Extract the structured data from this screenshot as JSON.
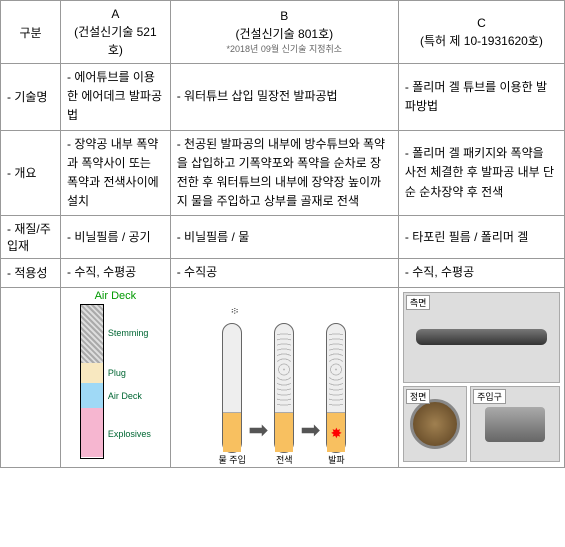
{
  "header": {
    "category_label": "구분",
    "col_a_title": "A\n(건설신기술 521호)",
    "col_b_title": "B\n(건설신기술 801호)",
    "col_b_note": "*2018년 09월 신기술 지정취소",
    "col_c_title": "C\n(특허 제 10-1931620호)"
  },
  "rows": {
    "tech_name": {
      "label": "- 기술명",
      "a": "- 에어튜브를 이용한 에어데크 발파공법",
      "b": "- 워터튜브 삽입 밀장전 발파공법",
      "c": "- 폴리머 겔 튜브를 이용한 발파방법"
    },
    "overview": {
      "label": "- 개요",
      "a": "- 장약공 내부 폭약과 폭약사이 또는 폭약과 전색사이에 설치",
      "b": "- 천공된 발파공의 내부에 방수튜브와 폭약을 삽입하고 기폭약포와 폭약을 순차로 장전한 후 워터튜브의 내부에 장약장 높이까지 물을 주입하고 상부를 골재로 전색",
      "c": "- 폴리머 겔 패키지와 폭약을 사전 체결한 후 발파공 내부 단순 순차장약 후 전색"
    },
    "material": {
      "label": "- 재질/주입재",
      "a": "- 비닐필름 / 공기",
      "b": "- 비닐필름 / 물",
      "c": "- 타포린 필름 / 폴리머 겔"
    },
    "applicability": {
      "label": "- 적용성",
      "a": "- 수직, 수평공",
      "b": "- 수직공",
      "c": "- 수직, 수평공"
    }
  },
  "diagram_a": {
    "title": "Air Deck",
    "labels": {
      "stemming": "Stemming",
      "plug": "Plug",
      "airdeck": "Air Deck",
      "explosives": "Explosives"
    },
    "colors": {
      "stemming": "#bfbfbf",
      "plug": "#f8e8c0",
      "airdeck": "#9fd9f6",
      "explosives": "#f6b6d0"
    }
  },
  "diagram_b": {
    "steps": {
      "s1": "물 주입",
      "s2": "전색",
      "s3": "발파"
    }
  },
  "diagram_c": {
    "labels": {
      "side": "측면",
      "front": "정면",
      "inlet": "주입구"
    }
  }
}
